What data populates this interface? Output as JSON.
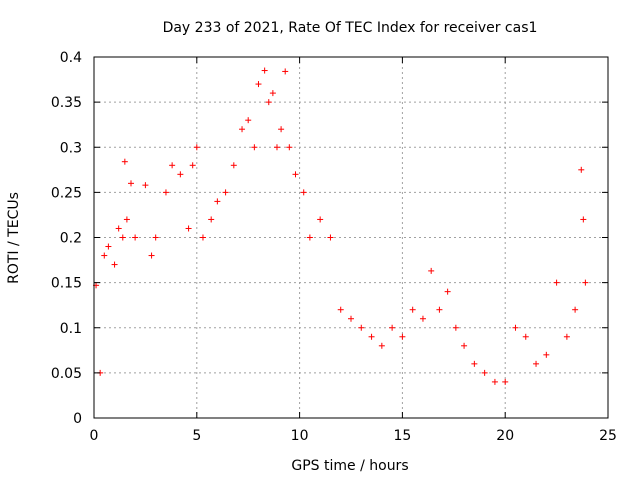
{
  "chart_data": {
    "type": "scatter",
    "title": "Day 233 of 2021, Rate Of TEC Index for receiver cas1",
    "xlabel": "GPS time / hours",
    "ylabel": "ROTI / TECUs",
    "xlim": [
      0,
      25
    ],
    "ylim": [
      0,
      0.4
    ],
    "xticks": [
      0,
      5,
      10,
      15,
      20,
      25
    ],
    "yticks": [
      0,
      0.05,
      0.1,
      0.15,
      0.2,
      0.25,
      0.3,
      0.35,
      0.4
    ],
    "ytick_labels": [
      "0",
      "0.05",
      "0.1",
      "0.15",
      "0.2",
      "0.25",
      "0.3",
      "0.35",
      "0.4"
    ],
    "grid": true,
    "marker": "+",
    "marker_color": "#ff0000",
    "series": [
      {
        "x": [
          0.1,
          0.3,
          0.5,
          0.7,
          1.0,
          1.2,
          1.4,
          1.5,
          1.6,
          1.8,
          2.0,
          2.5,
          2.8,
          3.0,
          3.5,
          3.8,
          4.2,
          4.6,
          4.8,
          5.0,
          5.3,
          5.7,
          6.0,
          6.4,
          6.8,
          7.2,
          7.5,
          7.8,
          8.0,
          8.3,
          8.5,
          8.7,
          8.9,
          9.1,
          9.3,
          9.5,
          9.8,
          10.2,
          10.5,
          11.0,
          11.5,
          12.0,
          12.5,
          13.0,
          13.5,
          14.0,
          14.5,
          15.0,
          15.5,
          16.0,
          16.4,
          16.8,
          17.2,
          17.6,
          18.0,
          18.5,
          19.0,
          19.5,
          20.0,
          20.5,
          21.0,
          21.5,
          22.0,
          22.5,
          23.0,
          23.4,
          23.7,
          23.8,
          23.9
        ],
        "y": [
          0.147,
          0.05,
          0.18,
          0.19,
          0.17,
          0.21,
          0.2,
          0.284,
          0.22,
          0.26,
          0.2,
          0.258,
          0.18,
          0.2,
          0.25,
          0.28,
          0.27,
          0.21,
          0.28,
          0.3,
          0.2,
          0.22,
          0.24,
          0.25,
          0.28,
          0.32,
          0.33,
          0.3,
          0.37,
          0.385,
          0.35,
          0.36,
          0.3,
          0.32,
          0.384,
          0.3,
          0.27,
          0.25,
          0.2,
          0.22,
          0.2,
          0.12,
          0.11,
          0.1,
          0.09,
          0.08,
          0.1,
          0.09,
          0.12,
          0.11,
          0.163,
          0.12,
          0.14,
          0.1,
          0.08,
          0.06,
          0.05,
          0.04,
          0.04,
          0.1,
          0.09,
          0.06,
          0.07,
          0.15,
          0.09,
          0.12,
          0.275,
          0.22,
          0.15
        ]
      }
    ]
  }
}
